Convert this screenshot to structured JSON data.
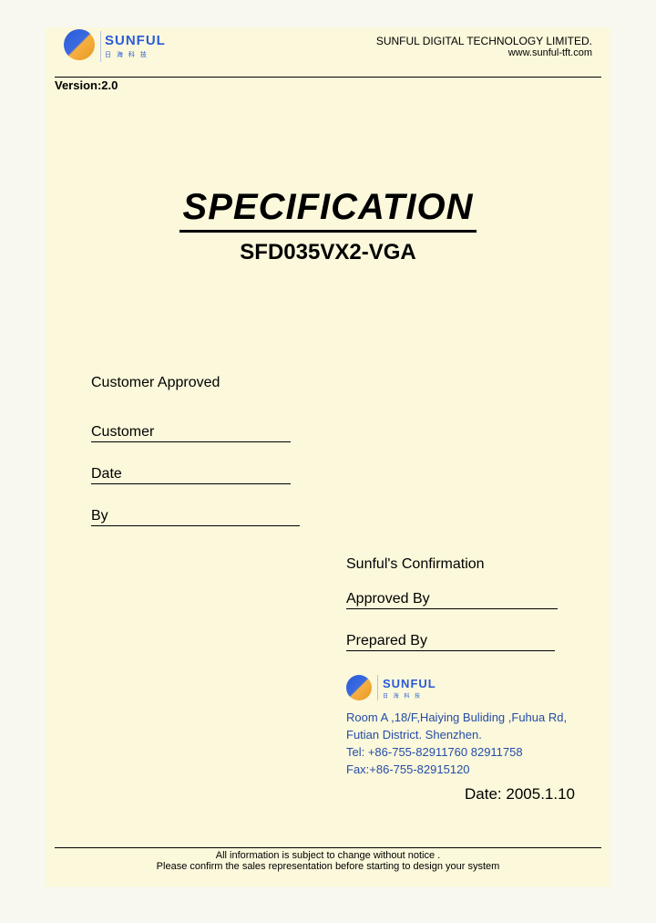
{
  "header": {
    "logo_text": "SUNFUL",
    "logo_sub": "日 海 科 技",
    "company": "SUNFUL DIGITAL TECHNOLOGY LIMITED.",
    "url": "www.sunful-tft.com",
    "version_label": "Version:2.0"
  },
  "title": {
    "main": "SPECIFICATION",
    "model": "SFD035VX2-VGA"
  },
  "customer": {
    "heading": "Customer Approved",
    "customer_label": "Customer",
    "date_label": "Date",
    "by_label": "By"
  },
  "confirmation": {
    "heading": "Sunful's Confirmation",
    "approved_label": "Approved By",
    "prepared_label": "Prepared By",
    "logo_text": "SUNFUL",
    "logo_sub": "日 海 科 技",
    "addr_line1": "Room A ,18/F,Haiying Buliding ,Fuhua Rd,",
    "addr_line2": "Futian District. Shenzhen.",
    "tel": "Tel: +86-755-82911760   82911758",
    "fax": "Fax:+86-755-82915120",
    "date_label": "Date: 2005.1.10"
  },
  "footer": {
    "line1": "All information is subject to change without notice .",
    "line2": "Please confirm the sales representation before starting to design your system"
  },
  "colors": {
    "page_bg": "#fbf8db",
    "outer_bg": "#f8f8f0",
    "brand_blue": "#2a5bd8",
    "addr_blue": "#254ca8",
    "text": "#000000"
  }
}
